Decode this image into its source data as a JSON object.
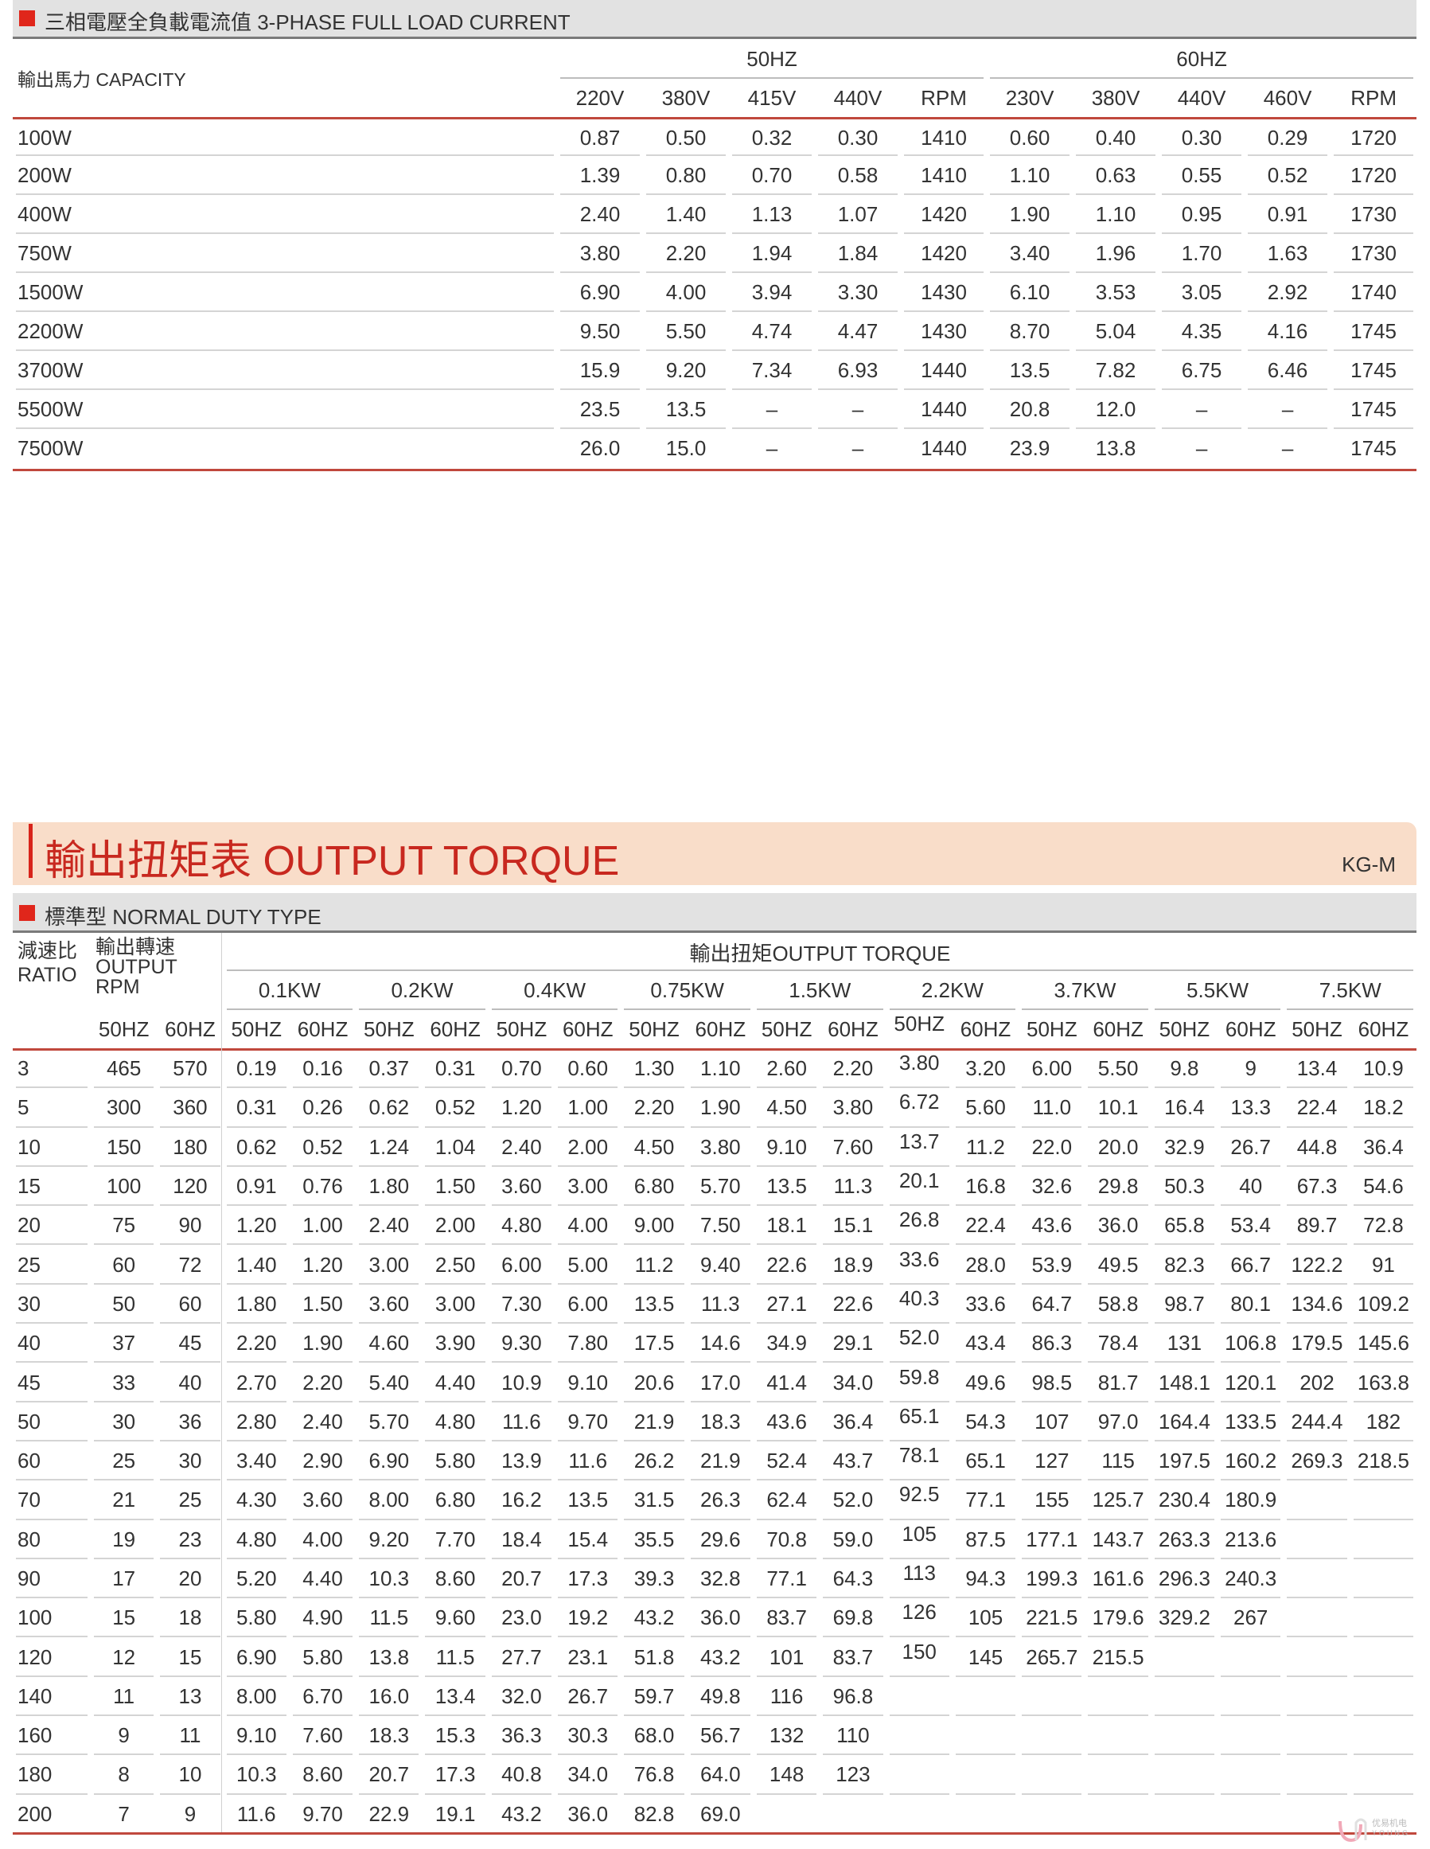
{
  "current_section": {
    "title": "三相電壓全負載電流值 3-PHASE FULL LOAD CURRENT",
    "capacity_header": "輸出馬力 CAPACITY",
    "groups": [
      "50HZ",
      "60HZ"
    ],
    "columns": [
      "220V",
      "380V",
      "415V",
      "440V",
      "RPM",
      "230V",
      "380V",
      "440V",
      "460V",
      "RPM"
    ],
    "rows": [
      [
        "100W",
        "0.87",
        "0.50",
        "0.32",
        "0.30",
        "1410",
        "0.60",
        "0.40",
        "0.30",
        "0.29",
        "1720"
      ],
      [
        "200W",
        "1.39",
        "0.80",
        "0.70",
        "0.58",
        "1410",
        "1.10",
        "0.63",
        "0.55",
        "0.52",
        "1720"
      ],
      [
        "400W",
        "2.40",
        "1.40",
        "1.13",
        "1.07",
        "1420",
        "1.90",
        "1.10",
        "0.95",
        "0.91",
        "1730"
      ],
      [
        "750W",
        "3.80",
        "2.20",
        "1.94",
        "1.84",
        "1420",
        "3.40",
        "1.96",
        "1.70",
        "1.63",
        "1730"
      ],
      [
        "1500W",
        "6.90",
        "4.00",
        "3.94",
        "3.30",
        "1430",
        "6.10",
        "3.53",
        "3.05",
        "2.92",
        "1740"
      ],
      [
        "2200W",
        "9.50",
        "5.50",
        "4.74",
        "4.47",
        "1430",
        "8.70",
        "5.04",
        "4.35",
        "4.16",
        "1745"
      ],
      [
        "3700W",
        "15.9",
        "9.20",
        "7.34",
        "6.93",
        "1440",
        "13.5",
        "7.82",
        "6.75",
        "6.46",
        "1745"
      ],
      [
        "5500W",
        "23.5",
        "13.5",
        "–",
        "–",
        "1440",
        "20.8",
        "12.0",
        "–",
        "–",
        "1745"
      ],
      [
        "7500W",
        "26.0",
        "15.0",
        "–",
        "–",
        "1440",
        "23.9",
        "13.8",
        "–",
        "–",
        "1745"
      ]
    ]
  },
  "torque_section": {
    "banner_title": "輸出扭矩表 OUTPUT TORQUE",
    "model": "KG-M",
    "subtitle": "標準型 NORMAL DUTY TYPE",
    "ratio_header": [
      "減速比",
      "RATIO"
    ],
    "rpm_header": [
      "輸出轉速",
      "OUTPUT",
      "RPM"
    ],
    "torque_header": "輸出扭矩OUTPUT TORQUE",
    "powers": [
      "0.1KW",
      "0.2KW",
      "0.4KW",
      "0.75KW",
      "1.5KW",
      "2.2KW",
      "3.7KW",
      "5.5KW",
      "7.5KW"
    ],
    "freq_labels": [
      "50HZ",
      "60HZ"
    ],
    "rows": [
      [
        "3",
        "465",
        "570",
        "0.19",
        "0.16",
        "0.37",
        "0.31",
        "0.70",
        "0.60",
        "1.30",
        "1.10",
        "2.60",
        "2.20",
        "3.80",
        "3.20",
        "6.00",
        "5.50",
        "9.8",
        "9",
        "13.4",
        "10.9"
      ],
      [
        "5",
        "300",
        "360",
        "0.31",
        "0.26",
        "0.62",
        "0.52",
        "1.20",
        "1.00",
        "2.20",
        "1.90",
        "4.50",
        "3.80",
        "6.72",
        "5.60",
        "11.0",
        "10.1",
        "16.4",
        "13.3",
        "22.4",
        "18.2"
      ],
      [
        "10",
        "150",
        "180",
        "0.62",
        "0.52",
        "1.24",
        "1.04",
        "2.40",
        "2.00",
        "4.50",
        "3.80",
        "9.10",
        "7.60",
        "13.7",
        "11.2",
        "22.0",
        "20.0",
        "32.9",
        "26.7",
        "44.8",
        "36.4"
      ],
      [
        "15",
        "100",
        "120",
        "0.91",
        "0.76",
        "1.80",
        "1.50",
        "3.60",
        "3.00",
        "6.80",
        "5.70",
        "13.5",
        "11.3",
        "20.1",
        "16.8",
        "32.6",
        "29.8",
        "50.3",
        "40",
        "67.3",
        "54.6"
      ],
      [
        "20",
        "75",
        "90",
        "1.20",
        "1.00",
        "2.40",
        "2.00",
        "4.80",
        "4.00",
        "9.00",
        "7.50",
        "18.1",
        "15.1",
        "26.8",
        "22.4",
        "43.6",
        "36.0",
        "65.8",
        "53.4",
        "89.7",
        "72.8"
      ],
      [
        "25",
        "60",
        "72",
        "1.40",
        "1.20",
        "3.00",
        "2.50",
        "6.00",
        "5.00",
        "11.2",
        "9.40",
        "22.6",
        "18.9",
        "33.6",
        "28.0",
        "53.9",
        "49.5",
        "82.3",
        "66.7",
        "122.2",
        "91"
      ],
      [
        "30",
        "50",
        "60",
        "1.80",
        "1.50",
        "3.60",
        "3.00",
        "7.30",
        "6.00",
        "13.5",
        "11.3",
        "27.1",
        "22.6",
        "40.3",
        "33.6",
        "64.7",
        "58.8",
        "98.7",
        "80.1",
        "134.6",
        "109.2"
      ],
      [
        "40",
        "37",
        "45",
        "2.20",
        "1.90",
        "4.60",
        "3.90",
        "9.30",
        "7.80",
        "17.5",
        "14.6",
        "34.9",
        "29.1",
        "52.0",
        "43.4",
        "86.3",
        "78.4",
        "131",
        "106.8",
        "179.5",
        "145.6"
      ],
      [
        "45",
        "33",
        "40",
        "2.70",
        "2.20",
        "5.40",
        "4.40",
        "10.9",
        "9.10",
        "20.6",
        "17.0",
        "41.4",
        "34.0",
        "59.8",
        "49.6",
        "98.5",
        "81.7",
        "148.1",
        "120.1",
        "202",
        "163.8"
      ],
      [
        "50",
        "30",
        "36",
        "2.80",
        "2.40",
        "5.70",
        "4.80",
        "11.6",
        "9.70",
        "21.9",
        "18.3",
        "43.6",
        "36.4",
        "65.1",
        "54.3",
        "107",
        "97.0",
        "164.4",
        "133.5",
        "244.4",
        "182"
      ],
      [
        "60",
        "25",
        "30",
        "3.40",
        "2.90",
        "6.90",
        "5.80",
        "13.9",
        "11.6",
        "26.2",
        "21.9",
        "52.4",
        "43.7",
        "78.1",
        "65.1",
        "127",
        "115",
        "197.5",
        "160.2",
        "269.3",
        "218.5"
      ],
      [
        "70",
        "21",
        "25",
        "4.30",
        "3.60",
        "8.00",
        "6.80",
        "16.2",
        "13.5",
        "31.5",
        "26.3",
        "62.4",
        "52.0",
        "92.5",
        "77.1",
        "155",
        "125.7",
        "230.4",
        "180.9",
        "",
        ""
      ],
      [
        "80",
        "19",
        "23",
        "4.80",
        "4.00",
        "9.20",
        "7.70",
        "18.4",
        "15.4",
        "35.5",
        "29.6",
        "70.8",
        "59.0",
        "105",
        "87.5",
        "177.1",
        "143.7",
        "263.3",
        "213.6",
        "",
        ""
      ],
      [
        "90",
        "17",
        "20",
        "5.20",
        "4.40",
        "10.3",
        "8.60",
        "20.7",
        "17.3",
        "39.3",
        "32.8",
        "77.1",
        "64.3",
        "113",
        "94.3",
        "199.3",
        "161.6",
        "296.3",
        "240.3",
        "",
        ""
      ],
      [
        "100",
        "15",
        "18",
        "5.80",
        "4.90",
        "11.5",
        "9.60",
        "23.0",
        "19.2",
        "43.2",
        "36.0",
        "83.7",
        "69.8",
        "126",
        "105",
        "221.5",
        "179.6",
        "329.2",
        "267",
        "",
        ""
      ],
      [
        "120",
        "12",
        "15",
        "6.90",
        "5.80",
        "13.8",
        "11.5",
        "27.7",
        "23.1",
        "51.8",
        "43.2",
        "101",
        "83.7",
        "150",
        "145",
        "265.7",
        "215.5",
        "",
        "",
        "",
        ""
      ],
      [
        "140",
        "11",
        "13",
        "8.00",
        "6.70",
        "16.0",
        "13.4",
        "32.0",
        "26.7",
        "59.7",
        "49.8",
        "116",
        "96.8",
        "",
        "",
        "",
        "",
        "",
        "",
        "",
        ""
      ],
      [
        "160",
        "9",
        "11",
        "9.10",
        "7.60",
        "18.3",
        "15.3",
        "36.3",
        "30.3",
        "68.0",
        "56.7",
        "132",
        "110",
        "",
        "",
        "",
        "",
        "",
        "",
        "",
        ""
      ],
      [
        "180",
        "8",
        "10",
        "10.3",
        "8.60",
        "20.7",
        "17.3",
        "40.8",
        "34.0",
        "76.8",
        "64.0",
        "148",
        "123",
        "",
        "",
        "",
        "",
        "",
        "",
        "",
        ""
      ],
      [
        "200",
        "7",
        "9",
        "11.6",
        "9.70",
        "22.9",
        "19.1",
        "43.2",
        "36.0",
        "82.8",
        "69.0",
        "",
        "",
        "",
        "",
        "",
        "",
        "",
        "",
        "",
        ""
      ]
    ]
  },
  "logo": {
    "text": "优易机电",
    "sub": "YOUNG"
  },
  "colors": {
    "accent_red": "#e0261b",
    "rule_red": "#c0483d",
    "banner_bg": "#f9ddc9",
    "section_bar_bg": "#e2e2e2"
  }
}
